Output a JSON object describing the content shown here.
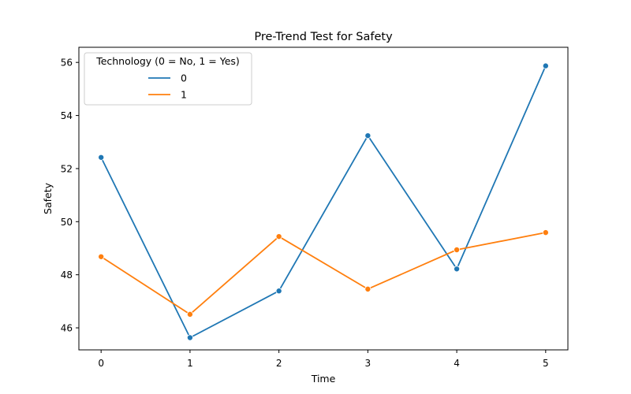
{
  "chart_data": {
    "type": "line",
    "title": "Pre-Trend Test for Safety",
    "xlabel": "Time",
    "ylabel": "Safety",
    "x": [
      0,
      1,
      2,
      3,
      4,
      5
    ],
    "xticks": [
      "0",
      "1",
      "2",
      "3",
      "4",
      "5"
    ],
    "yticks": [
      "46",
      "48",
      "50",
      "52",
      "54",
      "56"
    ],
    "xlim": [
      -0.25,
      5.25
    ],
    "ylim": [
      45.17,
      56.57
    ],
    "grid": false,
    "legend": {
      "title": "Technology (0 = No, 1 = Yes)",
      "placement": "top-left"
    },
    "series": [
      {
        "name": "0",
        "color": "#1f77b4",
        "values": [
          52.42,
          45.63,
          47.39,
          53.24,
          48.22,
          55.87
        ]
      },
      {
        "name": "1",
        "color": "#ff7f0e",
        "values": [
          48.68,
          46.51,
          49.44,
          47.46,
          48.94,
          49.59
        ]
      }
    ]
  }
}
